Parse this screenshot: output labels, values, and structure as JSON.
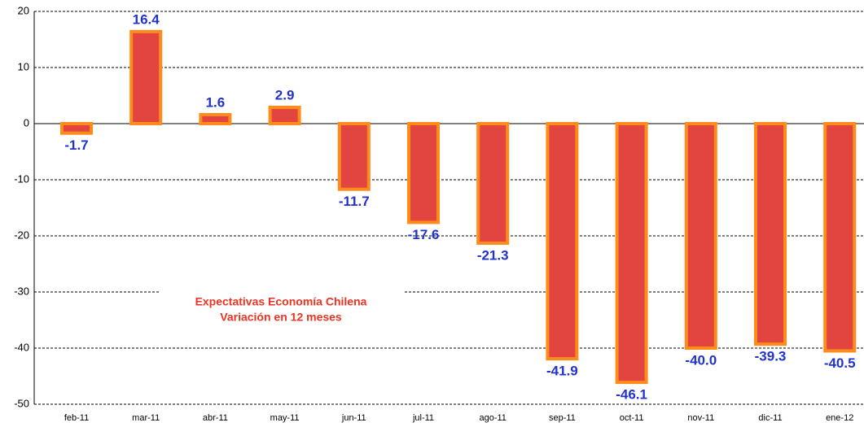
{
  "chart_data": {
    "type": "bar",
    "title": [
      "Expectativas Economía Chilena",
      "Variación en 12 meses"
    ],
    "categories": [
      "feb-11",
      "mar-11",
      "abr-11",
      "may-11",
      "jun-11",
      "jul-11",
      "ago-11",
      "sep-11",
      "oct-11",
      "nov-11",
      "dic-11",
      "ene-12"
    ],
    "values": [
      -1.7,
      16.4,
      1.6,
      2.9,
      -11.7,
      -17.6,
      -21.3,
      -41.9,
      -46.1,
      -40.0,
      -39.3,
      -40.5
    ],
    "value_labels": [
      "-1.7",
      "16.4",
      "1.6",
      "2.9",
      "-11.7",
      "-17.6",
      "-21.3",
      "-41.9",
      "-46.1",
      "-40.0",
      "-39.3",
      "-40.5"
    ],
    "color": "#e2443f",
    "edge_color": "#ff8c1a",
    "ylim": [
      -50,
      20
    ],
    "yticks": [
      -50,
      -40,
      -30,
      -20,
      -10,
      0,
      10,
      20
    ],
    "grid": true
  }
}
